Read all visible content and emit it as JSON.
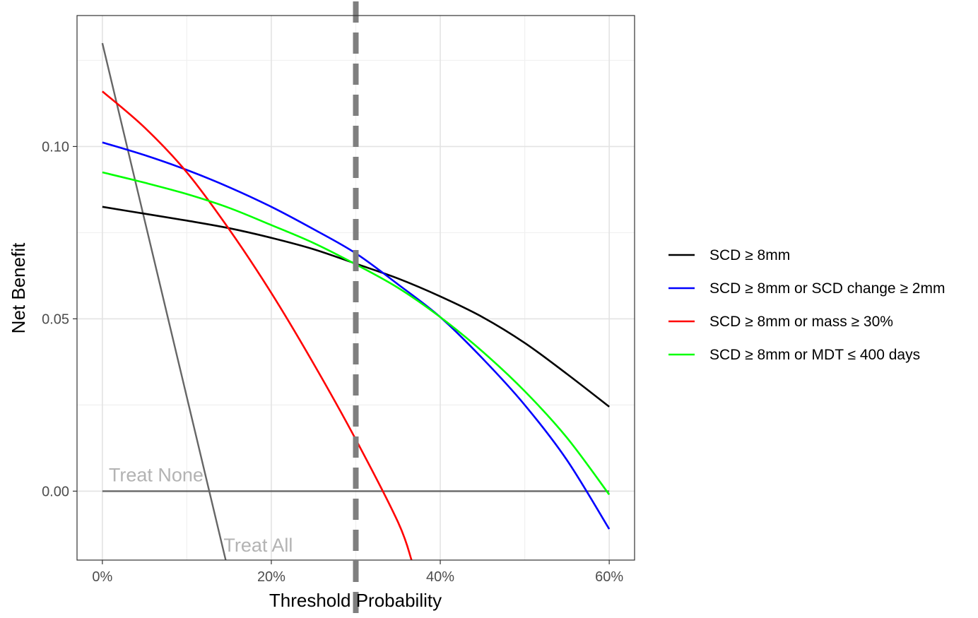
{
  "chart_data": {
    "type": "line",
    "xlabel": "Threshold Probability",
    "ylabel": "Net Benefit",
    "xlim": [
      -0.03,
      0.63
    ],
    "ylim": [
      -0.02,
      0.138
    ],
    "x_ticks": [
      0,
      0.2,
      0.4,
      0.6
    ],
    "x_tick_labels": [
      "0%",
      "20%",
      "40%",
      "60%"
    ],
    "y_ticks": [
      0.0,
      0.05,
      0.1
    ],
    "y_tick_labels": [
      "0.00",
      "0.05",
      "0.10"
    ],
    "grid": true,
    "legend_position": "right",
    "threshold_line": 0.3,
    "series": [
      {
        "name": "SCD ≥ 8mm",
        "color": "#000000",
        "x": [
          0,
          0.05,
          0.1,
          0.15,
          0.2,
          0.25,
          0.3,
          0.35,
          0.4,
          0.45,
          0.5,
          0.55,
          0.6
        ],
        "y": [
          0.0825,
          0.0805,
          0.0785,
          0.0763,
          0.0735,
          0.0702,
          0.066,
          0.0617,
          0.0565,
          0.0505,
          0.043,
          0.034,
          0.0245
        ]
      },
      {
        "name": "SCD ≥ 8mm or SCD change ≥ 2mm",
        "color": "#0000ff",
        "x": [
          0,
          0.05,
          0.1,
          0.15,
          0.2,
          0.25,
          0.3,
          0.35,
          0.4,
          0.45,
          0.5,
          0.55,
          0.6
        ],
        "y": [
          0.1012,
          0.0975,
          0.0932,
          0.0882,
          0.0825,
          0.076,
          0.069,
          0.06,
          0.0505,
          0.0385,
          0.025,
          0.009,
          -0.011
        ]
      },
      {
        "name": "SCD ≥ 8mm or mass ≥ 30%",
        "color": "#ff0000",
        "x": [
          0,
          0.05,
          0.1,
          0.15,
          0.2,
          0.25,
          0.3,
          0.35,
          0.366
        ],
        "y": [
          0.116,
          0.1055,
          0.0925,
          0.076,
          0.0575,
          0.037,
          0.015,
          -0.009,
          -0.02
        ]
      },
      {
        "name": "SCD ≥ 8mm or MDT ≤ 400 days",
        "color": "#00ff00",
        "x": [
          0,
          0.05,
          0.1,
          0.15,
          0.2,
          0.25,
          0.3,
          0.35,
          0.4,
          0.45,
          0.5,
          0.55,
          0.6
        ],
        "y": [
          0.0925,
          0.0895,
          0.0862,
          0.0822,
          0.0772,
          0.072,
          0.0658,
          0.059,
          0.0505,
          0.0405,
          0.029,
          0.0155,
          -0.001
        ]
      }
    ],
    "reference_lines": [
      {
        "label": "Treat None",
        "color": "#666666",
        "label_color": "#b3b3b3",
        "x": [
          0,
          0.6
        ],
        "y": [
          0,
          0
        ]
      },
      {
        "label": "Treat All",
        "color": "#666666",
        "label_color": "#b3b3b3",
        "x": [
          0,
          0.146
        ],
        "y": [
          0.13,
          -0.02
        ]
      }
    ]
  }
}
